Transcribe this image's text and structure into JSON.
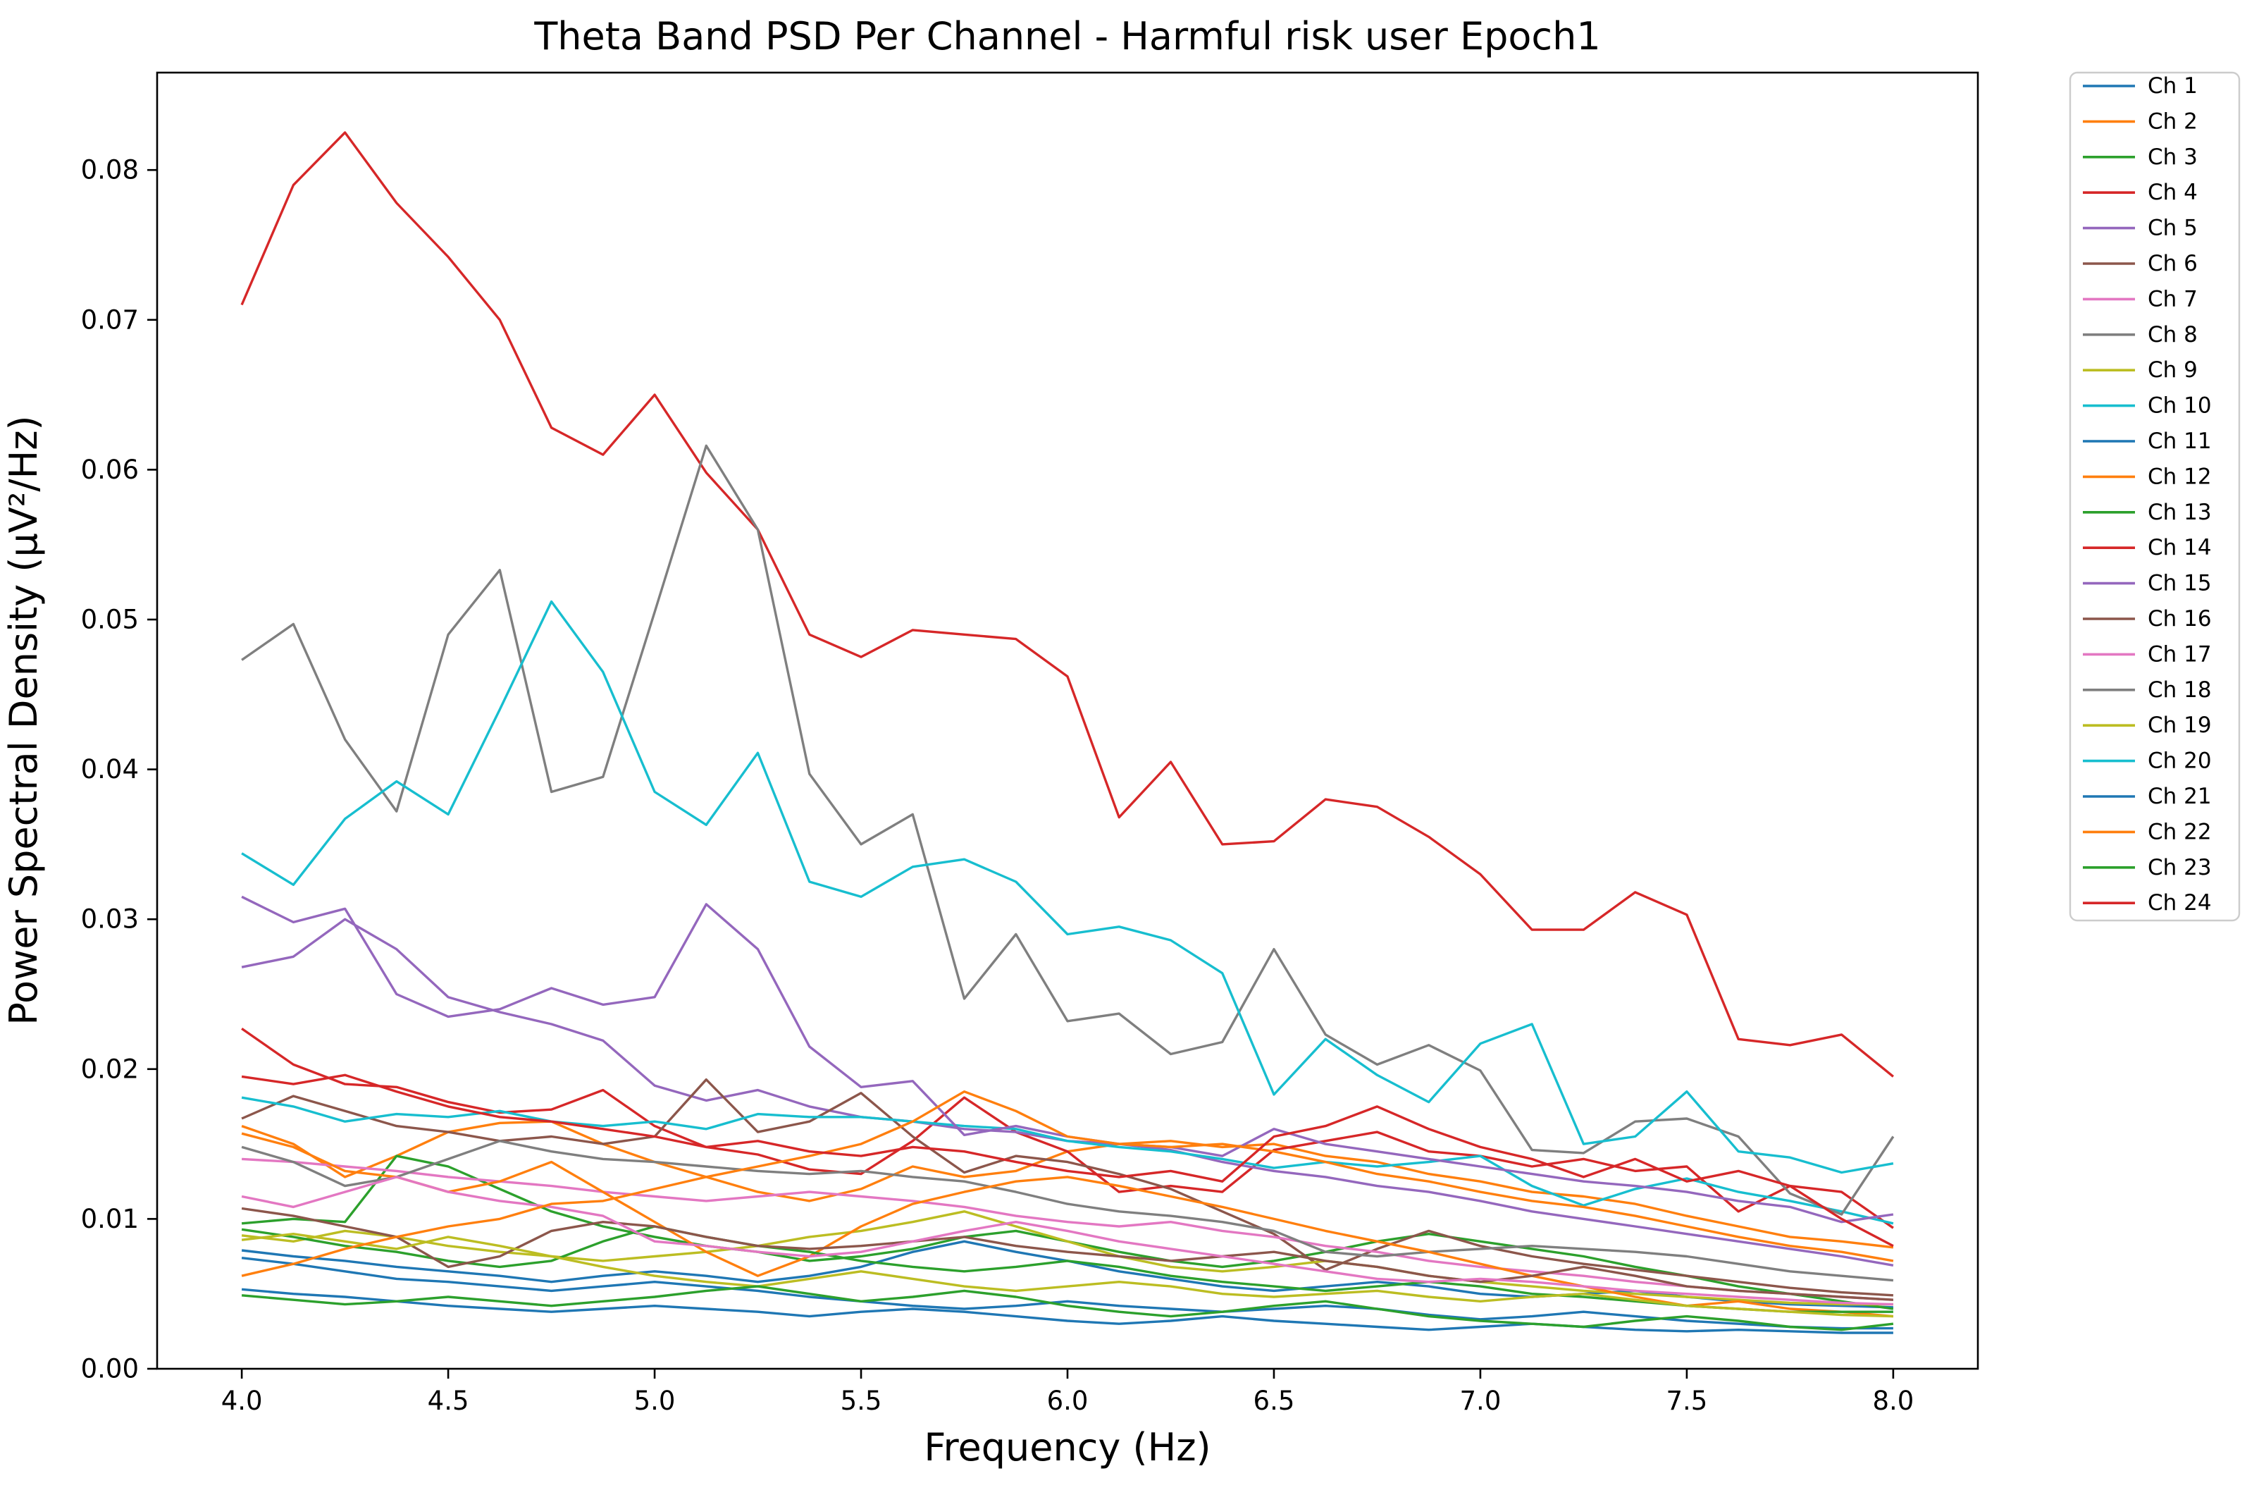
{
  "figure": {
    "title": "Theta Band PSD Per Channel - Harmful risk user Epoch1",
    "background_color": "#ffffff"
  },
  "chart_data": {
    "type": "line",
    "title": "Theta Band PSD Per Channel - Harmful risk user Epoch1",
    "xlabel": "Frequency (Hz)",
    "ylabel": "Power Spectral Density (µV²/Hz)",
    "xlim": [
      3.795,
      8.205
    ],
    "ylim": [
      0.0,
      0.0865
    ],
    "grid": false,
    "legend_position": "outside-right",
    "x_ticks": [
      4.0,
      4.5,
      5.0,
      5.5,
      6.0,
      6.5,
      7.0,
      7.5,
      8.0
    ],
    "x_tick_labels": [
      "4.0",
      "4.5",
      "5.0",
      "5.5",
      "6.0",
      "6.5",
      "7.0",
      "7.5",
      "8.0"
    ],
    "y_ticks": [
      0.0,
      0.01,
      0.02,
      0.03,
      0.04,
      0.05,
      0.06,
      0.07,
      0.08
    ],
    "y_tick_labels": [
      "0.00",
      "0.01",
      "0.02",
      "0.03",
      "0.04",
      "0.05",
      "0.06",
      "0.07",
      "0.08"
    ],
    "x": [
      4.0,
      4.125,
      4.25,
      4.375,
      4.5,
      4.625,
      4.75,
      4.875,
      5.0,
      5.125,
      5.25,
      5.375,
      5.5,
      5.625,
      5.75,
      5.875,
      6.0,
      6.125,
      6.25,
      6.375,
      6.5,
      6.625,
      6.75,
      6.875,
      7.0,
      7.125,
      7.25,
      7.375,
      7.5,
      7.625,
      7.75,
      7.875,
      8.0
    ],
    "series": [
      {
        "name": "Ch 1",
        "color": "#1f77b4",
        "values": [
          0.0079,
          0.0075,
          0.0072,
          0.0068,
          0.0065,
          0.0062,
          0.0058,
          0.0062,
          0.0065,
          0.0062,
          0.0058,
          0.0062,
          0.0068,
          0.0078,
          0.0085,
          0.0078,
          0.0072,
          0.0065,
          0.006,
          0.0055,
          0.0052,
          0.0055,
          0.0058,
          0.0055,
          0.005,
          0.0048,
          0.005,
          0.0052,
          0.0048,
          0.0045,
          0.0043,
          0.0042,
          0.0041
        ]
      },
      {
        "name": "Ch 2",
        "color": "#ff7f0e",
        "values": [
          0.0162,
          0.015,
          0.0128,
          0.0142,
          0.0158,
          0.0164,
          0.0165,
          0.015,
          0.0138,
          0.0128,
          0.0118,
          0.0112,
          0.012,
          0.0135,
          0.0128,
          0.0132,
          0.0145,
          0.015,
          0.0152,
          0.0148,
          0.015,
          0.0142,
          0.0138,
          0.013,
          0.0125,
          0.0118,
          0.0115,
          0.011,
          0.0102,
          0.0095,
          0.0088,
          0.0085,
          0.0081
        ]
      },
      {
        "name": "Ch 3",
        "color": "#2ca02c",
        "values": [
          0.0097,
          0.01,
          0.0098,
          0.0142,
          0.0135,
          0.012,
          0.0105,
          0.0095,
          0.0088,
          0.0082,
          0.0078,
          0.0072,
          0.0075,
          0.008,
          0.0088,
          0.0092,
          0.0085,
          0.0078,
          0.0072,
          0.0068,
          0.0072,
          0.0078,
          0.0085,
          0.009,
          0.0085,
          0.008,
          0.0075,
          0.0068,
          0.0062,
          0.0055,
          0.005,
          0.0045,
          0.004
        ]
      },
      {
        "name": "Ch 4",
        "color": "#d62728",
        "values": [
          0.0227,
          0.0203,
          0.019,
          0.0188,
          0.0178,
          0.0171,
          0.0173,
          0.0186,
          0.0162,
          0.0148,
          0.0143,
          0.0133,
          0.013,
          0.0152,
          0.0181,
          0.0158,
          0.0145,
          0.0118,
          0.0122,
          0.0118,
          0.0146,
          0.0152,
          0.0158,
          0.0145,
          0.0142,
          0.0135,
          0.014,
          0.0132,
          0.0135,
          0.0105,
          0.0122,
          0.0118,
          0.0094
        ]
      },
      {
        "name": "Ch 5",
        "color": "#9467bd",
        "values": [
          0.0268,
          0.0275,
          0.03,
          0.028,
          0.0248,
          0.0238,
          0.023,
          0.0219,
          0.0189,
          0.0179,
          0.0186,
          0.0175,
          0.0168,
          0.0165,
          0.016,
          0.0158,
          0.0152,
          0.015,
          0.0146,
          0.0138,
          0.0132,
          0.0128,
          0.0122,
          0.0118,
          0.0112,
          0.0105,
          0.01,
          0.0095,
          0.009,
          0.0085,
          0.008,
          0.0075,
          0.0069
        ]
      },
      {
        "name": "Ch 6",
        "color": "#8c564b",
        "values": [
          0.0167,
          0.0182,
          0.0172,
          0.0162,
          0.0158,
          0.0152,
          0.0155,
          0.015,
          0.0155,
          0.0193,
          0.0158,
          0.0165,
          0.0184,
          0.0155,
          0.0131,
          0.0142,
          0.0138,
          0.013,
          0.012,
          0.0105,
          0.009,
          0.0066,
          0.008,
          0.0092,
          0.0082,
          0.0075,
          0.007,
          0.0066,
          0.0062,
          0.0058,
          0.0054,
          0.0051,
          0.0049
        ]
      },
      {
        "name": "Ch 7",
        "color": "#e377c2",
        "values": [
          0.014,
          0.0138,
          0.0135,
          0.0132,
          0.0128,
          0.0125,
          0.0122,
          0.0118,
          0.0115,
          0.0112,
          0.0115,
          0.0118,
          0.0115,
          0.0112,
          0.0108,
          0.0102,
          0.0098,
          0.0095,
          0.0098,
          0.0092,
          0.0088,
          0.0082,
          0.0078,
          0.0072,
          0.0068,
          0.0065,
          0.0062,
          0.0058,
          0.0055,
          0.0052,
          0.005,
          0.0048,
          0.0046
        ]
      },
      {
        "name": "Ch 8",
        "color": "#7f7f7f",
        "values": [
          0.0148,
          0.0138,
          0.0122,
          0.0128,
          0.014,
          0.0152,
          0.0145,
          0.014,
          0.0138,
          0.0135,
          0.0132,
          0.013,
          0.0132,
          0.0128,
          0.0125,
          0.0118,
          0.011,
          0.0105,
          0.0102,
          0.0098,
          0.0092,
          0.0078,
          0.0075,
          0.0078,
          0.008,
          0.0082,
          0.008,
          0.0078,
          0.0075,
          0.007,
          0.0065,
          0.0062,
          0.0059
        ]
      },
      {
        "name": "Ch 9",
        "color": "#bcbd22",
        "values": [
          0.0089,
          0.0085,
          0.0092,
          0.0088,
          0.0082,
          0.0078,
          0.0075,
          0.0072,
          0.0075,
          0.0078,
          0.0082,
          0.0088,
          0.0092,
          0.0098,
          0.0105,
          0.0095,
          0.0085,
          0.0075,
          0.0068,
          0.0065,
          0.0068,
          0.0072,
          0.0068,
          0.0062,
          0.0058,
          0.0055,
          0.0052,
          0.005,
          0.0048,
          0.0046,
          0.0044,
          0.0043,
          0.0043
        ]
      },
      {
        "name": "Ch 10",
        "color": "#17becf",
        "values": [
          0.0181,
          0.0175,
          0.0165,
          0.017,
          0.0168,
          0.0172,
          0.0165,
          0.0162,
          0.0165,
          0.016,
          0.017,
          0.0168,
          0.0168,
          0.0165,
          0.0162,
          0.016,
          0.0152,
          0.0148,
          0.0145,
          0.014,
          0.0134,
          0.0138,
          0.0135,
          0.0138,
          0.0142,
          0.0122,
          0.0109,
          0.012,
          0.0127,
          0.0118,
          0.0112,
          0.0105,
          0.0097
        ]
      },
      {
        "name": "Ch 11",
        "color": "#1f77b4",
        "values": [
          0.0074,
          0.007,
          0.0065,
          0.006,
          0.0058,
          0.0055,
          0.0052,
          0.0055,
          0.0058,
          0.0055,
          0.0052,
          0.0048,
          0.0045,
          0.0042,
          0.004,
          0.0042,
          0.0045,
          0.0042,
          0.004,
          0.0038,
          0.004,
          0.0042,
          0.004,
          0.0036,
          0.0033,
          0.0035,
          0.0038,
          0.0035,
          0.0032,
          0.003,
          0.0028,
          0.0027,
          0.0027
        ]
      },
      {
        "name": "Ch 12",
        "color": "#ff7f0e",
        "values": [
          0.0157,
          0.0148,
          0.0132,
          0.0128,
          0.0118,
          0.0125,
          0.0138,
          0.0118,
          0.0098,
          0.0078,
          0.0062,
          0.0075,
          0.0095,
          0.011,
          0.0118,
          0.0125,
          0.0128,
          0.0122,
          0.0115,
          0.0108,
          0.01,
          0.0092,
          0.0085,
          0.0078,
          0.007,
          0.0062,
          0.0055,
          0.0048,
          0.0042,
          0.0045,
          0.004,
          0.0038,
          0.0035
        ]
      },
      {
        "name": "Ch 13",
        "color": "#2ca02c",
        "values": [
          0.0093,
          0.0088,
          0.0082,
          0.0078,
          0.0072,
          0.0068,
          0.0072,
          0.0085,
          0.0095,
          0.0088,
          0.0082,
          0.0078,
          0.0072,
          0.0068,
          0.0065,
          0.0068,
          0.0072,
          0.0068,
          0.0062,
          0.0058,
          0.0055,
          0.0052,
          0.0055,
          0.0058,
          0.0055,
          0.005,
          0.0048,
          0.0045,
          0.0042,
          0.004,
          0.0038,
          0.0038,
          0.0038
        ]
      },
      {
        "name": "Ch 14",
        "color": "#d62728",
        "values": [
          0.071,
          0.079,
          0.0825,
          0.0778,
          0.0742,
          0.07,
          0.0628,
          0.061,
          0.065,
          0.0598,
          0.056,
          0.049,
          0.0475,
          0.0493,
          0.049,
          0.0487,
          0.0462,
          0.0368,
          0.0405,
          0.035,
          0.0352,
          0.038,
          0.0375,
          0.0355,
          0.033,
          0.0293,
          0.0293,
          0.0318,
          0.0303,
          0.022,
          0.0216,
          0.0223,
          0.0195
        ]
      },
      {
        "name": "Ch 15",
        "color": "#9467bd",
        "values": [
          0.0315,
          0.0298,
          0.0307,
          0.025,
          0.0235,
          0.024,
          0.0254,
          0.0243,
          0.0248,
          0.031,
          0.028,
          0.0215,
          0.0188,
          0.0192,
          0.0156,
          0.0162,
          0.0155,
          0.015,
          0.0148,
          0.0142,
          0.016,
          0.015,
          0.0145,
          0.014,
          0.0135,
          0.013,
          0.0125,
          0.0122,
          0.0118,
          0.0112,
          0.0108,
          0.0098,
          0.0103
        ]
      },
      {
        "name": "Ch 16",
        "color": "#8c564b",
        "values": [
          0.0107,
          0.0102,
          0.0095,
          0.0088,
          0.0068,
          0.0075,
          0.0092,
          0.0098,
          0.0095,
          0.0088,
          0.0082,
          0.008,
          0.0082,
          0.0085,
          0.0088,
          0.0082,
          0.0078,
          0.0075,
          0.0072,
          0.0075,
          0.0078,
          0.0072,
          0.0068,
          0.0062,
          0.0058,
          0.0062,
          0.0068,
          0.0062,
          0.0055,
          0.0052,
          0.005,
          0.0048,
          0.0046
        ]
      },
      {
        "name": "Ch 17",
        "color": "#e377c2",
        "values": [
          0.0115,
          0.0108,
          0.0118,
          0.0128,
          0.0118,
          0.0112,
          0.0108,
          0.0102,
          0.0085,
          0.0082,
          0.0078,
          0.0075,
          0.0078,
          0.0085,
          0.0092,
          0.0098,
          0.0092,
          0.0085,
          0.008,
          0.0075,
          0.007,
          0.0065,
          0.006,
          0.0058,
          0.006,
          0.0058,
          0.0055,
          0.0052,
          0.005,
          0.0048,
          0.0046,
          0.0044,
          0.0043
        ]
      },
      {
        "name": "Ch 18",
        "color": "#7f7f7f",
        "values": [
          0.0473,
          0.0497,
          0.042,
          0.0372,
          0.049,
          0.0533,
          0.0385,
          0.0395,
          0.0505,
          0.0616,
          0.056,
          0.0397,
          0.035,
          0.037,
          0.0247,
          0.029,
          0.0232,
          0.0237,
          0.021,
          0.0218,
          0.028,
          0.0223,
          0.0203,
          0.0216,
          0.0199,
          0.0146,
          0.0144,
          0.0165,
          0.0167,
          0.0155,
          0.0117,
          0.0103,
          0.0155
        ]
      },
      {
        "name": "Ch 19",
        "color": "#bcbd22",
        "values": [
          0.0086,
          0.009,
          0.0085,
          0.008,
          0.0088,
          0.0082,
          0.0075,
          0.0068,
          0.0062,
          0.0058,
          0.0055,
          0.006,
          0.0065,
          0.006,
          0.0055,
          0.0052,
          0.0055,
          0.0058,
          0.0055,
          0.005,
          0.0048,
          0.005,
          0.0052,
          0.0048,
          0.0045,
          0.0048,
          0.005,
          0.0046,
          0.0042,
          0.004,
          0.0038,
          0.0036,
          0.0035
        ]
      },
      {
        "name": "Ch 20",
        "color": "#17becf",
        "values": [
          0.0344,
          0.0323,
          0.0367,
          0.0392,
          0.037,
          0.044,
          0.0512,
          0.0465,
          0.0385,
          0.0363,
          0.0411,
          0.0325,
          0.0315,
          0.0335,
          0.034,
          0.0325,
          0.029,
          0.0295,
          0.0286,
          0.0264,
          0.0183,
          0.022,
          0.0196,
          0.0178,
          0.0217,
          0.023,
          0.015,
          0.0155,
          0.0185,
          0.0145,
          0.0141,
          0.0131,
          0.0137
        ]
      },
      {
        "name": "Ch 21",
        "color": "#1f77b4",
        "values": [
          0.0053,
          0.005,
          0.0048,
          0.0045,
          0.0042,
          0.004,
          0.0038,
          0.004,
          0.0042,
          0.004,
          0.0038,
          0.0035,
          0.0038,
          0.004,
          0.0038,
          0.0035,
          0.0032,
          0.003,
          0.0032,
          0.0035,
          0.0032,
          0.003,
          0.0028,
          0.0026,
          0.0028,
          0.003,
          0.0028,
          0.0026,
          0.0025,
          0.0026,
          0.0025,
          0.0024,
          0.0024
        ]
      },
      {
        "name": "Ch 22",
        "color": "#ff7f0e",
        "values": [
          0.0062,
          0.007,
          0.008,
          0.0088,
          0.0095,
          0.01,
          0.011,
          0.0112,
          0.012,
          0.0128,
          0.0135,
          0.0142,
          0.015,
          0.0165,
          0.0185,
          0.0172,
          0.0155,
          0.015,
          0.0148,
          0.015,
          0.0145,
          0.0138,
          0.013,
          0.0125,
          0.0118,
          0.0112,
          0.0108,
          0.0102,
          0.0095,
          0.0088,
          0.0082,
          0.0078,
          0.0072
        ]
      },
      {
        "name": "Ch 23",
        "color": "#2ca02c",
        "values": [
          0.0049,
          0.0046,
          0.0043,
          0.0045,
          0.0048,
          0.0045,
          0.0042,
          0.0045,
          0.0048,
          0.0052,
          0.0055,
          0.005,
          0.0045,
          0.0048,
          0.0052,
          0.0048,
          0.0042,
          0.0038,
          0.0035,
          0.0038,
          0.0042,
          0.0045,
          0.004,
          0.0035,
          0.0032,
          0.003,
          0.0028,
          0.0032,
          0.0035,
          0.0032,
          0.0028,
          0.0026,
          0.003
        ]
      },
      {
        "name": "Ch 24",
        "color": "#d62728",
        "values": [
          0.0195,
          0.019,
          0.0196,
          0.0185,
          0.0175,
          0.0168,
          0.0165,
          0.016,
          0.0155,
          0.0148,
          0.0152,
          0.0145,
          0.0142,
          0.0148,
          0.0145,
          0.0138,
          0.0132,
          0.0128,
          0.0132,
          0.0125,
          0.0155,
          0.0162,
          0.0175,
          0.016,
          0.0148,
          0.014,
          0.0128,
          0.014,
          0.0125,
          0.0132,
          0.0122,
          0.01,
          0.0082
        ]
      }
    ]
  }
}
